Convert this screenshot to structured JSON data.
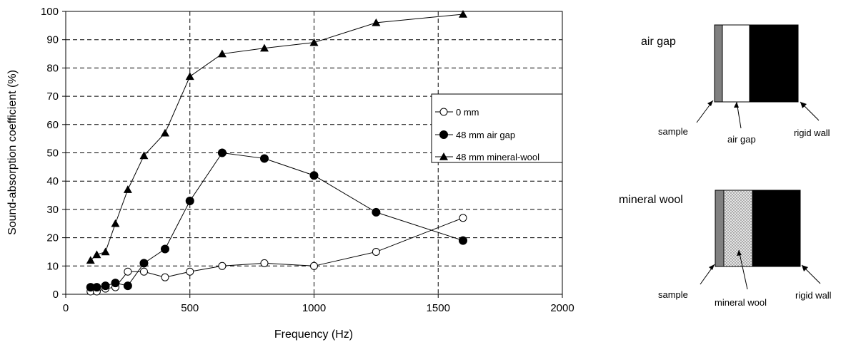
{
  "chart_data": {
    "type": "line",
    "xlabel": "Frequency (Hz)",
    "ylabel": "Sound-absorption coefficient (%)",
    "xlim": [
      0,
      2000
    ],
    "ylim": [
      0,
      100
    ],
    "xticks": [
      "0",
      "500",
      "1000",
      "1500",
      "2000"
    ],
    "yticks": [
      "0",
      "10",
      "20",
      "30",
      "40",
      "50",
      "60",
      "70",
      "80",
      "90",
      "100"
    ],
    "grid": true,
    "legend_position": "right",
    "series": [
      {
        "name": "0 mm",
        "marker": "open-circle",
        "x": [
          100,
          125,
          160,
          200,
          250,
          315,
          400,
          500,
          630,
          800,
          1000,
          1250,
          1600
        ],
        "y": [
          1,
          1,
          2,
          2.5,
          8,
          8,
          6,
          8,
          10,
          11,
          10,
          15,
          27
        ]
      },
      {
        "name": "48 mm air gap",
        "marker": "filled-circle",
        "x": [
          100,
          125,
          160,
          200,
          250,
          315,
          400,
          500,
          630,
          800,
          1000,
          1250,
          1600
        ],
        "y": [
          2.5,
          2.5,
          3,
          4,
          3,
          11,
          16,
          33,
          50,
          48,
          42,
          29,
          19
        ]
      },
      {
        "name": "48 mm mineral-wool",
        "marker": "filled-triangle",
        "x": [
          100,
          125,
          160,
          200,
          250,
          315,
          400,
          500,
          630,
          800,
          1000,
          1250,
          1600
        ],
        "y": [
          12,
          14,
          15,
          25,
          37,
          49,
          57,
          77,
          85,
          87,
          89,
          96,
          99
        ]
      }
    ]
  },
  "diagrams": [
    {
      "title": "air gap",
      "labels": {
        "left": "sample",
        "middle": "air gap",
        "right": "rigid wall"
      }
    },
    {
      "title": "mineral wool",
      "labels": {
        "left": "sample",
        "middle": "mineral wool",
        "right": "rigid wall"
      }
    }
  ],
  "colors": {
    "line": "#000000",
    "grid": "#000000",
    "sample": "#808080",
    "wall": "#000000",
    "wool_fill": "#d9d9d9"
  }
}
